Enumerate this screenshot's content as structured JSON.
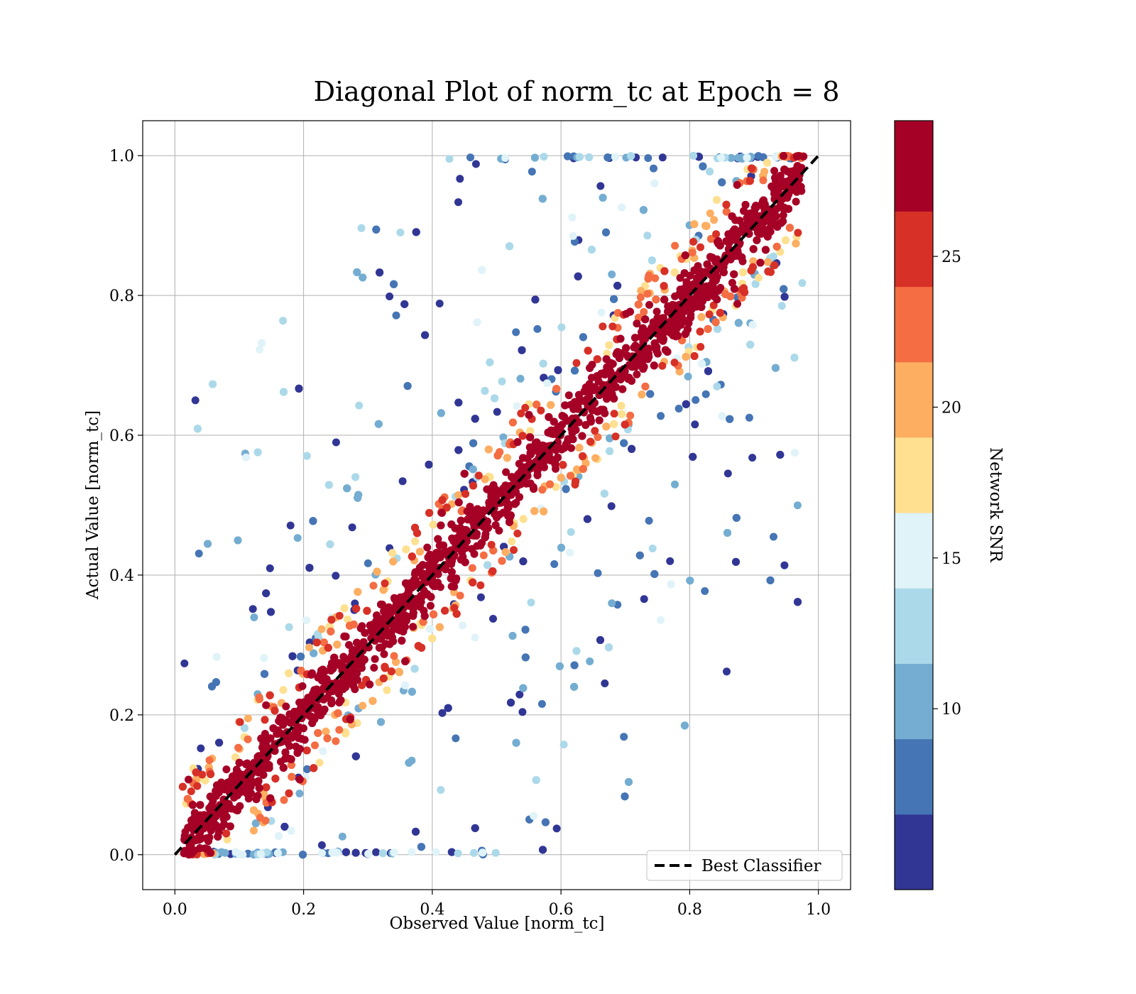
{
  "chart_data": {
    "type": "scatter",
    "title": "Diagonal Plot of norm_tc at Epoch = 8",
    "xlabel": "Observed Value [norm_tc]",
    "ylabel": "Actual Value [norm_tc]",
    "xlim": [
      -0.05,
      1.05
    ],
    "ylim": [
      -0.05,
      1.05
    ],
    "xticks": [
      "0.0",
      "0.2",
      "0.4",
      "0.6",
      "0.8",
      "1.0"
    ],
    "yticks": [
      "0.0",
      "0.2",
      "0.4",
      "0.6",
      "0.8",
      "1.0"
    ],
    "grid": true,
    "legend": {
      "placement": "lower-right",
      "entries": [
        "Best Classifier"
      ]
    },
    "reference_line": {
      "name": "Best Classifier",
      "style": "dashed",
      "color": "#000000",
      "points": [
        [
          0,
          0
        ],
        [
          1,
          1
        ]
      ]
    },
    "colorbar": {
      "label": "Network SNR",
      "range": [
        4,
        29.5
      ],
      "ticks": [
        "10",
        "15",
        "20",
        "25"
      ],
      "bins": [
        {
          "from": 4.0,
          "to": 6.5,
          "color": "#313695"
        },
        {
          "from": 6.5,
          "to": 9.0,
          "color": "#4575b4"
        },
        {
          "from": 9.0,
          "to": 11.5,
          "color": "#74add1"
        },
        {
          "from": 11.5,
          "to": 14.0,
          "color": "#abd9e9"
        },
        {
          "from": 14.0,
          "to": 16.5,
          "color": "#e0f3f8"
        },
        {
          "from": 16.5,
          "to": 19.0,
          "color": "#fee090"
        },
        {
          "from": 19.0,
          "to": 21.5,
          "color": "#fdae61"
        },
        {
          "from": 21.5,
          "to": 24.0,
          "color": "#f46d43"
        },
        {
          "from": 24.0,
          "to": 26.5,
          "color": "#d73027"
        },
        {
          "from": 26.5,
          "to": 29.5,
          "color": "#a50026"
        }
      ]
    },
    "series": [
      {
        "description_of_distribution": "dense band along the diagonal, high SNR near the line, low SNR scattered away",
        "band_dense_halfwidth": 0.07,
        "point_count_approx": 6000
      }
    ]
  }
}
